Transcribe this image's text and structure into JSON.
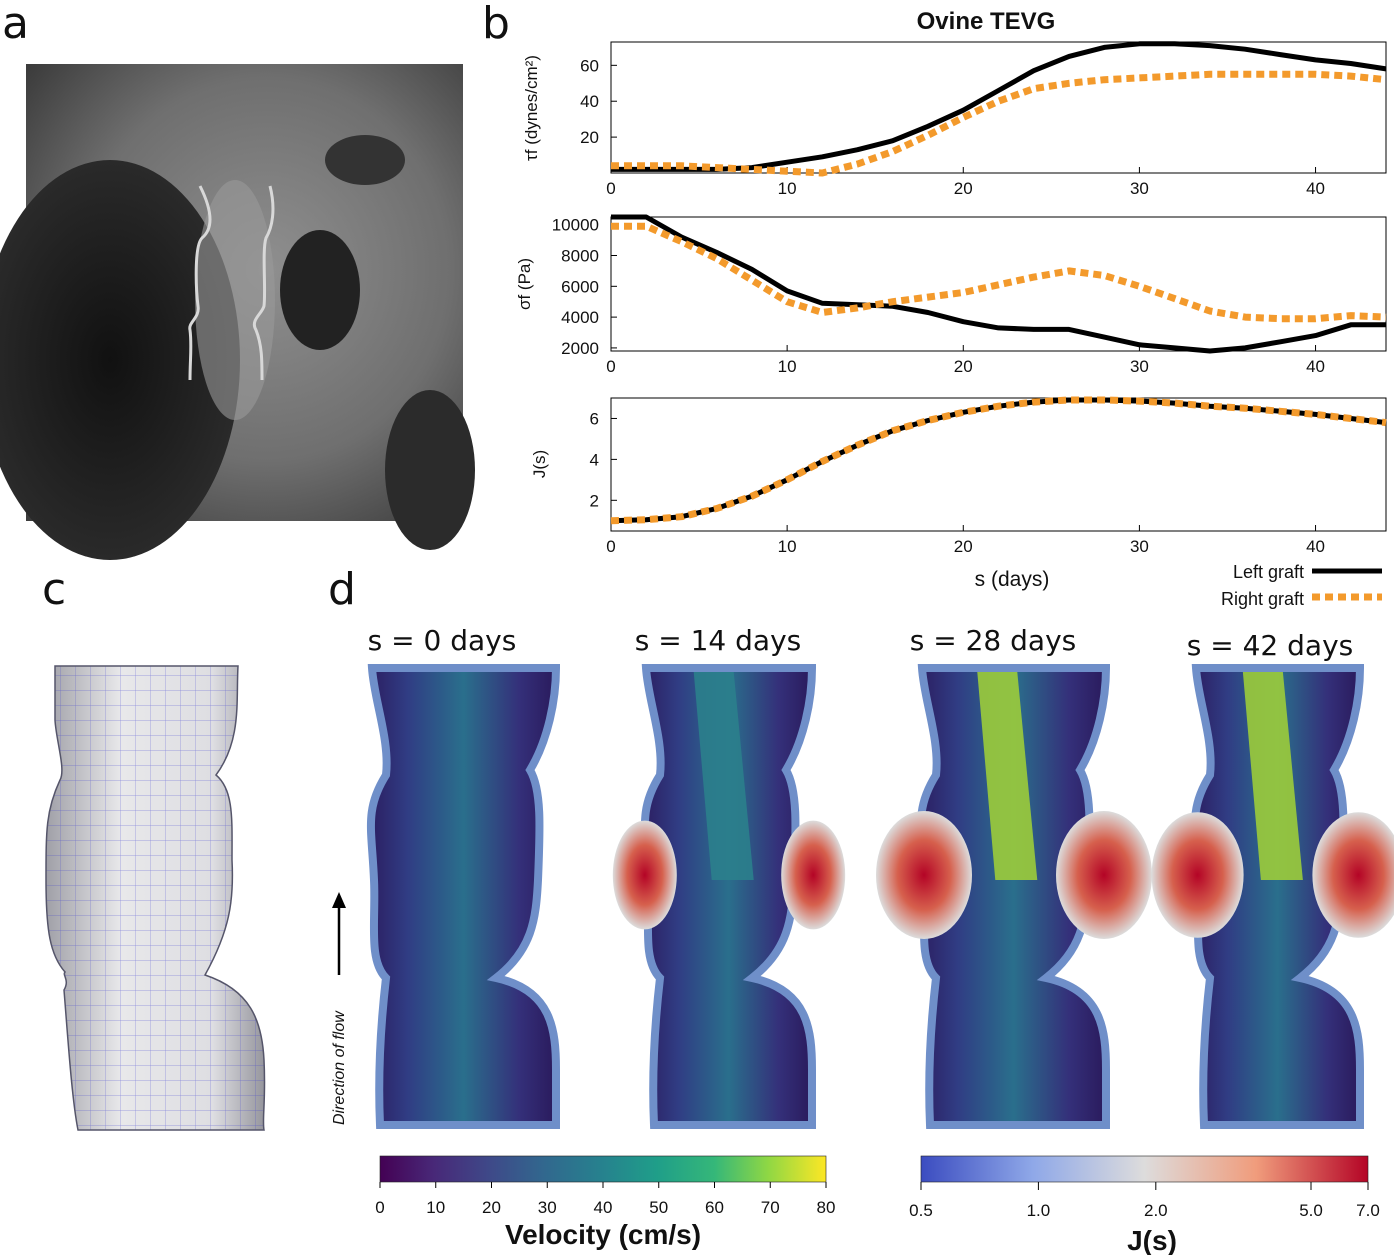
{
  "panels": {
    "a": "a",
    "b": "b",
    "c": "c",
    "d": "d"
  },
  "panel_b": {
    "title": "Ovine TEVG",
    "xlabel": "s (days)",
    "legend": {
      "left": "Left graft",
      "right": "Right graft"
    }
  },
  "chart_data": [
    {
      "type": "line",
      "title": "Ovine TEVG",
      "ylabel": "τf (dynes/cm²)",
      "xlim": [
        0,
        44
      ],
      "ylim": [
        0,
        73
      ],
      "xticks": [
        0,
        10,
        20,
        30,
        40
      ],
      "yticks": [
        20,
        40,
        60
      ],
      "series": [
        {
          "name": "Left graft",
          "x": [
            0,
            2,
            4,
            6,
            8,
            10,
            12,
            14,
            16,
            18,
            20,
            22,
            24,
            26,
            28,
            30,
            32,
            34,
            36,
            38,
            40,
            42,
            44
          ],
          "y": [
            2,
            2,
            2,
            2,
            3,
            6,
            9,
            13,
            18,
            26,
            35,
            46,
            57,
            65,
            70,
            72,
            72,
            71,
            69,
            66,
            63,
            61,
            58
          ]
        },
        {
          "name": "Right graft",
          "x": [
            0,
            2,
            4,
            6,
            8,
            10,
            12,
            14,
            16,
            18,
            20,
            22,
            24,
            26,
            28,
            30,
            32,
            34,
            36,
            38,
            40,
            42,
            44
          ],
          "y": [
            4,
            4,
            4,
            3,
            2,
            1,
            0,
            5,
            12,
            21,
            31,
            40,
            47,
            50,
            52,
            53,
            54,
            55,
            55,
            55,
            55,
            54,
            52
          ]
        }
      ]
    },
    {
      "type": "line",
      "ylabel": "σf (Pa)",
      "xlim": [
        0,
        44
      ],
      "ylim": [
        1800,
        10500
      ],
      "xticks": [
        0,
        10,
        20,
        30,
        40
      ],
      "yticks": [
        2000,
        4000,
        6000,
        8000,
        10000
      ],
      "series": [
        {
          "name": "Left graft",
          "x": [
            0,
            2,
            4,
            6,
            8,
            10,
            12,
            14,
            16,
            18,
            20,
            22,
            24,
            26,
            28,
            30,
            32,
            34,
            36,
            38,
            40,
            42,
            44
          ],
          "y": [
            10500,
            10500,
            9200,
            8200,
            7100,
            5700,
            4900,
            4800,
            4700,
            4300,
            3700,
            3300,
            3200,
            3200,
            2700,
            2200,
            2000,
            1800,
            2000,
            2400,
            2800,
            3500,
            3500
          ]
        },
        {
          "name": "Right graft",
          "x": [
            0,
            2,
            4,
            6,
            8,
            10,
            12,
            14,
            16,
            18,
            20,
            22,
            24,
            26,
            28,
            30,
            32,
            34,
            36,
            38,
            40,
            42,
            44
          ],
          "y": [
            9900,
            9900,
            8900,
            7800,
            6400,
            5000,
            4300,
            4600,
            5000,
            5300,
            5600,
            6100,
            6600,
            7000,
            6700,
            6000,
            5200,
            4400,
            4000,
            3900,
            3900,
            4100,
            4000
          ]
        }
      ]
    },
    {
      "type": "line",
      "ylabel": "J(s)",
      "xlim": [
        0,
        44
      ],
      "ylim": [
        0.5,
        7
      ],
      "xticks": [
        0,
        10,
        20,
        30,
        40
      ],
      "yticks": [
        2,
        4,
        6
      ],
      "series": [
        {
          "name": "Left graft",
          "x": [
            0,
            2,
            4,
            6,
            8,
            10,
            12,
            14,
            16,
            18,
            20,
            22,
            24,
            26,
            28,
            30,
            32,
            34,
            36,
            38,
            40,
            42,
            44
          ],
          "y": [
            1.0,
            1.05,
            1.2,
            1.6,
            2.2,
            3.0,
            3.9,
            4.7,
            5.4,
            5.9,
            6.3,
            6.6,
            6.8,
            6.9,
            6.9,
            6.85,
            6.75,
            6.6,
            6.5,
            6.35,
            6.2,
            6.0,
            5.8
          ]
        },
        {
          "name": "Right graft",
          "x": [
            0,
            2,
            4,
            6,
            8,
            10,
            12,
            14,
            16,
            18,
            20,
            22,
            24,
            26,
            28,
            30,
            32,
            34,
            36,
            38,
            40,
            42,
            44
          ],
          "y": [
            1.0,
            1.05,
            1.2,
            1.6,
            2.2,
            3.0,
            3.9,
            4.7,
            5.4,
            5.9,
            6.3,
            6.6,
            6.8,
            6.9,
            6.9,
            6.85,
            6.75,
            6.6,
            6.5,
            6.35,
            6.2,
            6.0,
            5.8
          ]
        }
      ]
    }
  ],
  "colors": {
    "left_graft": "#000000",
    "right_graft": "#f39a2c",
    "vessel_wall": "#6f8fc9"
  },
  "panel_d": {
    "snapshots": [
      "s = 0 days",
      "s = 14 days",
      "s = 28 days",
      "s = 42 days"
    ],
    "flow_label": "Direction of flow",
    "velocity_bar": {
      "label": "Velocity (cm/s)",
      "ticks": [
        "0",
        "10",
        "20",
        "30",
        "40",
        "50",
        "60",
        "70",
        "80"
      ]
    },
    "j_bar": {
      "label": "J(s)",
      "ticks": [
        "0.5",
        "1.0",
        "2.0",
        "5.0",
        "7.0"
      ]
    }
  }
}
